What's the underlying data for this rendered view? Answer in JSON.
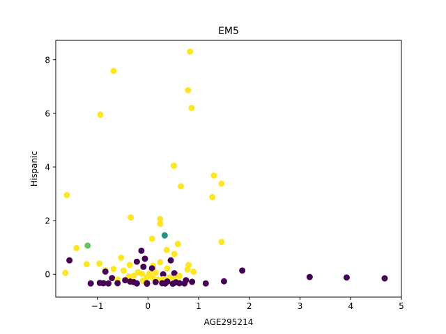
{
  "chart_data": {
    "type": "scatter",
    "title": "EM5",
    "xlabel": "AGE295214",
    "ylabel": "Hispanic",
    "xlim": [
      -1.82,
      5.0
    ],
    "ylim": [
      -0.85,
      8.72
    ],
    "xticks": [
      -1,
      0,
      1,
      2,
      3,
      4,
      5
    ],
    "yticks": [
      0,
      2,
      4,
      6,
      8
    ],
    "xtick_labels": [
      "−1",
      "0",
      "1",
      "2",
      "3",
      "4",
      "5"
    ],
    "ytick_labels": [
      "0",
      "2",
      "4",
      "6",
      "8"
    ],
    "grid": false,
    "legend": "none",
    "colors": {
      "purple": "#440154",
      "teal": "#21918c",
      "green": "#5ec962",
      "yellow": "#fde725"
    },
    "points": [
      {
        "x": 0.83,
        "y": 8.3,
        "color": "yellow"
      },
      {
        "x": -0.68,
        "y": 7.58,
        "color": "yellow"
      },
      {
        "x": 0.79,
        "y": 6.86,
        "color": "yellow"
      },
      {
        "x": 0.86,
        "y": 6.2,
        "color": "yellow"
      },
      {
        "x": -0.94,
        "y": 5.95,
        "color": "yellow"
      },
      {
        "x": 0.51,
        "y": 4.05,
        "color": "yellow"
      },
      {
        "x": 1.3,
        "y": 3.68,
        "color": "yellow"
      },
      {
        "x": 1.45,
        "y": 3.38,
        "color": "yellow"
      },
      {
        "x": 0.65,
        "y": 3.28,
        "color": "yellow"
      },
      {
        "x": -1.6,
        "y": 2.95,
        "color": "yellow"
      },
      {
        "x": 1.27,
        "y": 2.88,
        "color": "yellow"
      },
      {
        "x": -0.34,
        "y": 2.12,
        "color": "yellow"
      },
      {
        "x": 0.24,
        "y": 2.06,
        "color": "yellow"
      },
      {
        "x": 0.24,
        "y": 1.88,
        "color": "yellow"
      },
      {
        "x": 0.33,
        "y": 1.45,
        "color": "teal"
      },
      {
        "x": 0.08,
        "y": 1.33,
        "color": "yellow"
      },
      {
        "x": 1.45,
        "y": 1.21,
        "color": "yellow"
      },
      {
        "x": 0.59,
        "y": 1.13,
        "color": "yellow"
      },
      {
        "x": -1.19,
        "y": 1.07,
        "color": "green"
      },
      {
        "x": -1.41,
        "y": 0.98,
        "color": "yellow"
      },
      {
        "x": 0.37,
        "y": 0.91,
        "color": "yellow"
      },
      {
        "x": -0.13,
        "y": 0.88,
        "color": "purple"
      },
      {
        "x": 0.52,
        "y": 0.76,
        "color": "yellow"
      },
      {
        "x": -0.53,
        "y": 0.62,
        "color": "yellow"
      },
      {
        "x": -0.06,
        "y": 0.58,
        "color": "purple"
      },
      {
        "x": -1.55,
        "y": 0.52,
        "color": "purple"
      },
      {
        "x": 0.45,
        "y": 0.52,
        "color": "purple"
      },
      {
        "x": -0.22,
        "y": 0.47,
        "color": "purple"
      },
      {
        "x": 0.24,
        "y": 0.45,
        "color": "yellow"
      },
      {
        "x": -1.21,
        "y": 0.38,
        "color": "yellow"
      },
      {
        "x": -0.96,
        "y": 0.4,
        "color": "yellow"
      },
      {
        "x": -0.36,
        "y": 0.35,
        "color": "yellow"
      },
      {
        "x": 0.8,
        "y": 0.35,
        "color": "yellow"
      },
      {
        "x": 0.1,
        "y": 0.32,
        "color": "yellow"
      },
      {
        "x": -0.09,
        "y": 0.28,
        "color": "purple"
      },
      {
        "x": 0.38,
        "y": 0.22,
        "color": "yellow"
      },
      {
        "x": 0.08,
        "y": 0.22,
        "color": "purple"
      },
      {
        "x": -0.68,
        "y": 0.2,
        "color": "yellow"
      },
      {
        "x": 0.78,
        "y": 0.18,
        "color": "yellow"
      },
      {
        "x": -0.84,
        "y": 0.15,
        "color": "yellow"
      },
      {
        "x": -0.48,
        "y": 0.14,
        "color": "yellow"
      },
      {
        "x": 1.86,
        "y": 0.14,
        "color": "purple"
      },
      {
        "x": -0.84,
        "y": 0.1,
        "color": "purple"
      },
      {
        "x": 0.9,
        "y": 0.1,
        "color": "yellow"
      },
      {
        "x": -0.2,
        "y": 0.08,
        "color": "yellow"
      },
      {
        "x": 0.15,
        "y": 0.06,
        "color": "yellow"
      },
      {
        "x": 0.03,
        "y": 0.03,
        "color": "yellow"
      },
      {
        "x": -1.63,
        "y": 0.05,
        "color": "yellow"
      },
      {
        "x": 0.52,
        "y": 0.04,
        "color": "purple"
      },
      {
        "x": -0.12,
        "y": 0.02,
        "color": "yellow"
      },
      {
        "x": 0.3,
        "y": 0.0,
        "color": "purple"
      },
      {
        "x": -0.28,
        "y": -0.06,
        "color": "yellow"
      },
      {
        "x": 0.62,
        "y": -0.06,
        "color": "yellow"
      },
      {
        "x": -0.38,
        "y": -0.08,
        "color": "yellow"
      },
      {
        "x": -0.02,
        "y": -0.1,
        "color": "yellow"
      },
      {
        "x": 3.19,
        "y": -0.1,
        "color": "purple"
      },
      {
        "x": 3.92,
        "y": -0.12,
        "color": "purple"
      },
      {
        "x": 0.42,
        "y": -0.12,
        "color": "yellow"
      },
      {
        "x": -0.71,
        "y": -0.14,
        "color": "purple"
      },
      {
        "x": 0.1,
        "y": -0.14,
        "color": "yellow"
      },
      {
        "x": 4.67,
        "y": -0.15,
        "color": "purple"
      },
      {
        "x": 0.53,
        "y": -0.16,
        "color": "yellow"
      },
      {
        "x": 0.3,
        "y": -0.18,
        "color": "yellow"
      },
      {
        "x": -0.6,
        "y": -0.2,
        "color": "yellow"
      },
      {
        "x": 0.2,
        "y": -0.2,
        "color": "yellow"
      },
      {
        "x": -0.45,
        "y": -0.22,
        "color": "purple"
      },
      {
        "x": 0.75,
        "y": -0.22,
        "color": "purple"
      },
      {
        "x": -0.1,
        "y": -0.24,
        "color": "yellow"
      },
      {
        "x": 1.5,
        "y": -0.26,
        "color": "purple"
      },
      {
        "x": -0.35,
        "y": -0.27,
        "color": "purple"
      },
      {
        "x": 0.38,
        "y": -0.27,
        "color": "purple"
      },
      {
        "x": 0.87,
        "y": -0.28,
        "color": "purple"
      },
      {
        "x": -0.28,
        "y": -0.29,
        "color": "purple"
      },
      {
        "x": 0.15,
        "y": -0.29,
        "color": "purple"
      },
      {
        "x": 0.55,
        "y": -0.3,
        "color": "purple"
      },
      {
        "x": -0.95,
        "y": -0.32,
        "color": "purple"
      },
      {
        "x": -0.88,
        "y": -0.33,
        "color": "purple"
      },
      {
        "x": -0.6,
        "y": -0.33,
        "color": "purple"
      },
      {
        "x": -0.02,
        "y": -0.33,
        "color": "purple"
      },
      {
        "x": 0.28,
        "y": -0.33,
        "color": "purple"
      },
      {
        "x": 0.62,
        "y": -0.33,
        "color": "purple"
      },
      {
        "x": 1.14,
        "y": -0.34,
        "color": "purple"
      },
      {
        "x": -1.13,
        "y": -0.34,
        "color": "purple"
      },
      {
        "x": -0.78,
        "y": -0.34,
        "color": "purple"
      },
      {
        "x": -0.22,
        "y": -0.34,
        "color": "purple"
      },
      {
        "x": 0.34,
        "y": -0.34,
        "color": "purple"
      },
      {
        "x": 0.72,
        "y": -0.34,
        "color": "purple"
      },
      {
        "x": -0.02,
        "y": -0.35,
        "color": "purple"
      },
      {
        "x": 0.49,
        "y": -0.35,
        "color": "purple"
      }
    ]
  }
}
